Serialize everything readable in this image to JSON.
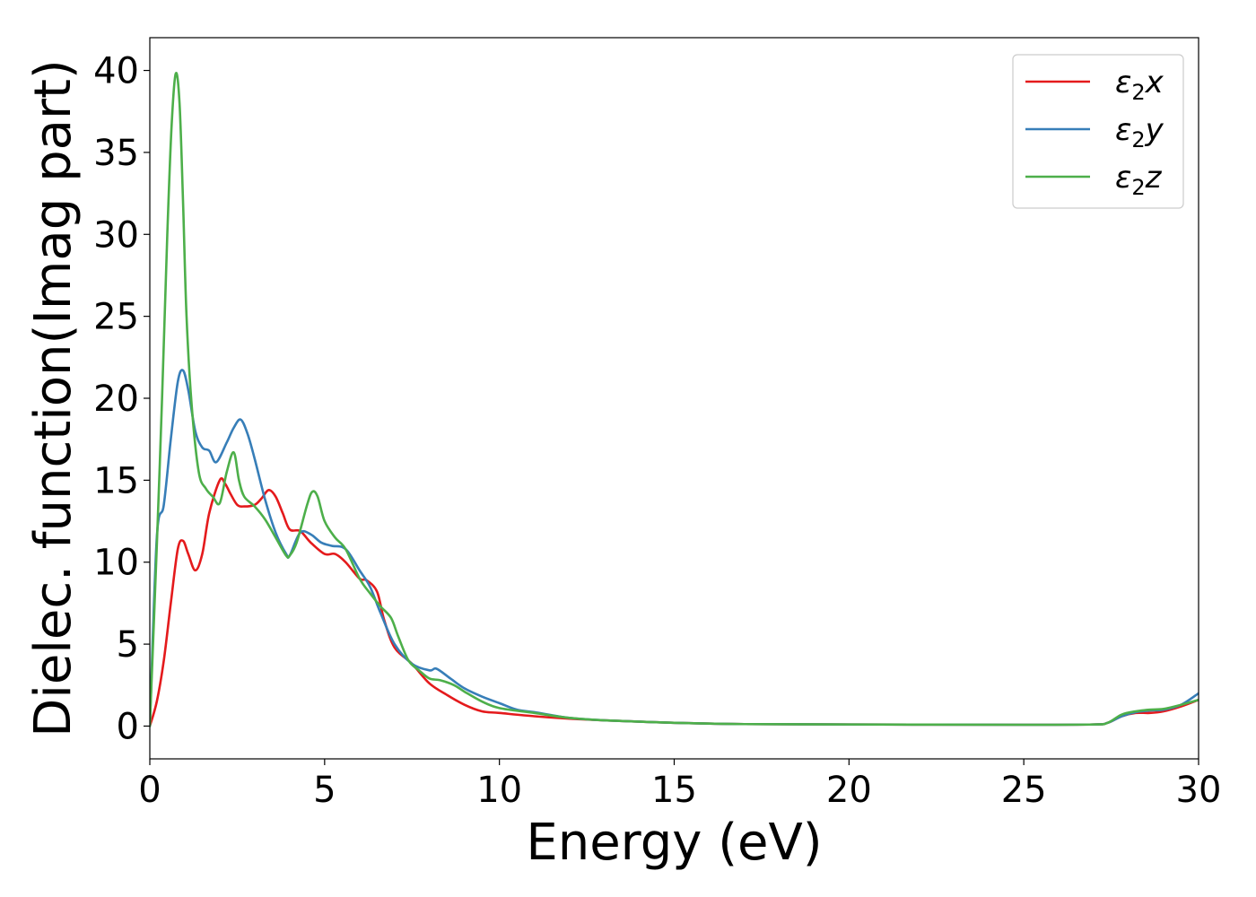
{
  "chart_data": {
    "type": "line",
    "title": "",
    "xlabel": "Energy (eV)",
    "ylabel": "Dielec. function(Imag part)",
    "xlim": [
      0,
      30
    ],
    "ylim": [
      -2,
      42
    ],
    "xticks": [
      0,
      5,
      10,
      15,
      20,
      25,
      30
    ],
    "yticks": [
      0,
      5,
      10,
      15,
      20,
      25,
      30,
      35,
      40
    ],
    "grid": false,
    "legend_position": "top-right",
    "series": [
      {
        "name": "ε₂x",
        "legend_main": "ε",
        "legend_sub": "2",
        "legend_suffix": "x",
        "color": "#e41a1c",
        "x": [
          0,
          0.2,
          0.4,
          0.6,
          0.8,
          0.95,
          1.1,
          1.3,
          1.5,
          1.7,
          2.0,
          2.15,
          2.3,
          2.5,
          2.7,
          3.0,
          3.2,
          3.4,
          3.6,
          3.8,
          4.0,
          4.3,
          4.6,
          5.0,
          5.3,
          5.6,
          6.0,
          6.2,
          6.5,
          6.7,
          7.0,
          7.5,
          8.0,
          8.5,
          9.0,
          9.5,
          10.0,
          11.0,
          12.0,
          13.0,
          15.0,
          17.0,
          20.0,
          25.0,
          27.0,
          27.4,
          27.8,
          28.2,
          28.6,
          29.0,
          29.5,
          30.0
        ],
        "y": [
          0,
          1.5,
          4.0,
          7.5,
          10.8,
          11.3,
          10.5,
          9.5,
          10.5,
          13.0,
          15.0,
          14.8,
          14.2,
          13.5,
          13.4,
          13.5,
          13.9,
          14.4,
          14.0,
          13.0,
          12.0,
          11.9,
          11.2,
          10.5,
          10.5,
          10.0,
          9.0,
          8.9,
          8.2,
          6.5,
          4.8,
          3.8,
          2.6,
          1.9,
          1.3,
          0.9,
          0.8,
          0.6,
          0.45,
          0.35,
          0.2,
          0.12,
          0.1,
          0.08,
          0.1,
          0.2,
          0.6,
          0.8,
          0.8,
          0.9,
          1.2,
          1.6
        ]
      },
      {
        "name": "ε₂y",
        "legend_main": "ε",
        "legend_sub": "2",
        "legend_suffix": "y",
        "color": "#377eb8",
        "x": [
          0,
          0.2,
          0.4,
          0.6,
          0.8,
          0.95,
          1.1,
          1.3,
          1.5,
          1.7,
          1.9,
          2.2,
          2.4,
          2.6,
          2.8,
          3.0,
          3.3,
          3.6,
          3.9,
          4.0,
          4.3,
          4.6,
          4.9,
          5.2,
          5.6,
          6.0,
          6.3,
          6.6,
          7.0,
          7.5,
          8.0,
          8.2,
          8.6,
          9.0,
          9.5,
          10.0,
          10.5,
          11.0,
          12.0,
          13.0,
          15.0,
          17.0,
          20.0,
          25.0,
          27.0,
          27.4,
          27.8,
          28.2,
          28.6,
          29.0,
          29.5,
          30.0
        ],
        "y": [
          0,
          11.5,
          13.5,
          17.5,
          21.0,
          21.7,
          20.5,
          18.0,
          17.0,
          16.8,
          16.1,
          17.3,
          18.2,
          18.7,
          17.8,
          16.3,
          13.8,
          11.8,
          10.5,
          10.4,
          11.8,
          11.7,
          11.2,
          11.0,
          10.8,
          9.5,
          8.5,
          6.9,
          5.0,
          3.8,
          3.4,
          3.5,
          2.9,
          2.3,
          1.8,
          1.4,
          1.0,
          0.85,
          0.5,
          0.35,
          0.2,
          0.12,
          0.1,
          0.08,
          0.1,
          0.2,
          0.6,
          0.85,
          0.95,
          1.0,
          1.3,
          2.0
        ]
      },
      {
        "name": "ε₂z",
        "legend_main": "ε",
        "legend_sub": "2",
        "legend_suffix": "z",
        "color": "#4daf4a",
        "x": [
          0,
          0.2,
          0.35,
          0.5,
          0.62,
          0.74,
          0.85,
          0.95,
          1.05,
          1.2,
          1.4,
          1.6,
          1.8,
          2.0,
          2.2,
          2.4,
          2.55,
          2.7,
          3.0,
          3.3,
          3.6,
          3.9,
          4.0,
          4.2,
          4.5,
          4.65,
          4.8,
          5.0,
          5.3,
          5.6,
          6.0,
          6.3,
          6.6,
          6.9,
          7.1,
          7.4,
          7.7,
          8.0,
          8.3,
          8.7,
          9.0,
          9.5,
          10.0,
          11.0,
          12.0,
          13.0,
          15.0,
          17.0,
          20.0,
          25.0,
          27.0,
          27.4,
          27.8,
          28.2,
          28.6,
          29.0,
          29.5,
          30.0
        ],
        "y": [
          0,
          11.0,
          20.0,
          30.0,
          36.5,
          39.8,
          38.0,
          32.0,
          25.0,
          19.5,
          15.5,
          14.5,
          14.0,
          13.6,
          15.5,
          16.7,
          15.0,
          14.0,
          13.4,
          12.6,
          11.5,
          10.4,
          10.4,
          11.2,
          13.5,
          14.3,
          14.0,
          12.5,
          11.5,
          10.8,
          9.0,
          8.1,
          7.3,
          6.6,
          5.5,
          4.0,
          3.4,
          2.9,
          2.8,
          2.5,
          2.1,
          1.5,
          1.1,
          0.8,
          0.5,
          0.35,
          0.2,
          0.12,
          0.1,
          0.08,
          0.1,
          0.2,
          0.7,
          0.9,
          1.0,
          1.05,
          1.3,
          1.6
        ]
      }
    ]
  }
}
